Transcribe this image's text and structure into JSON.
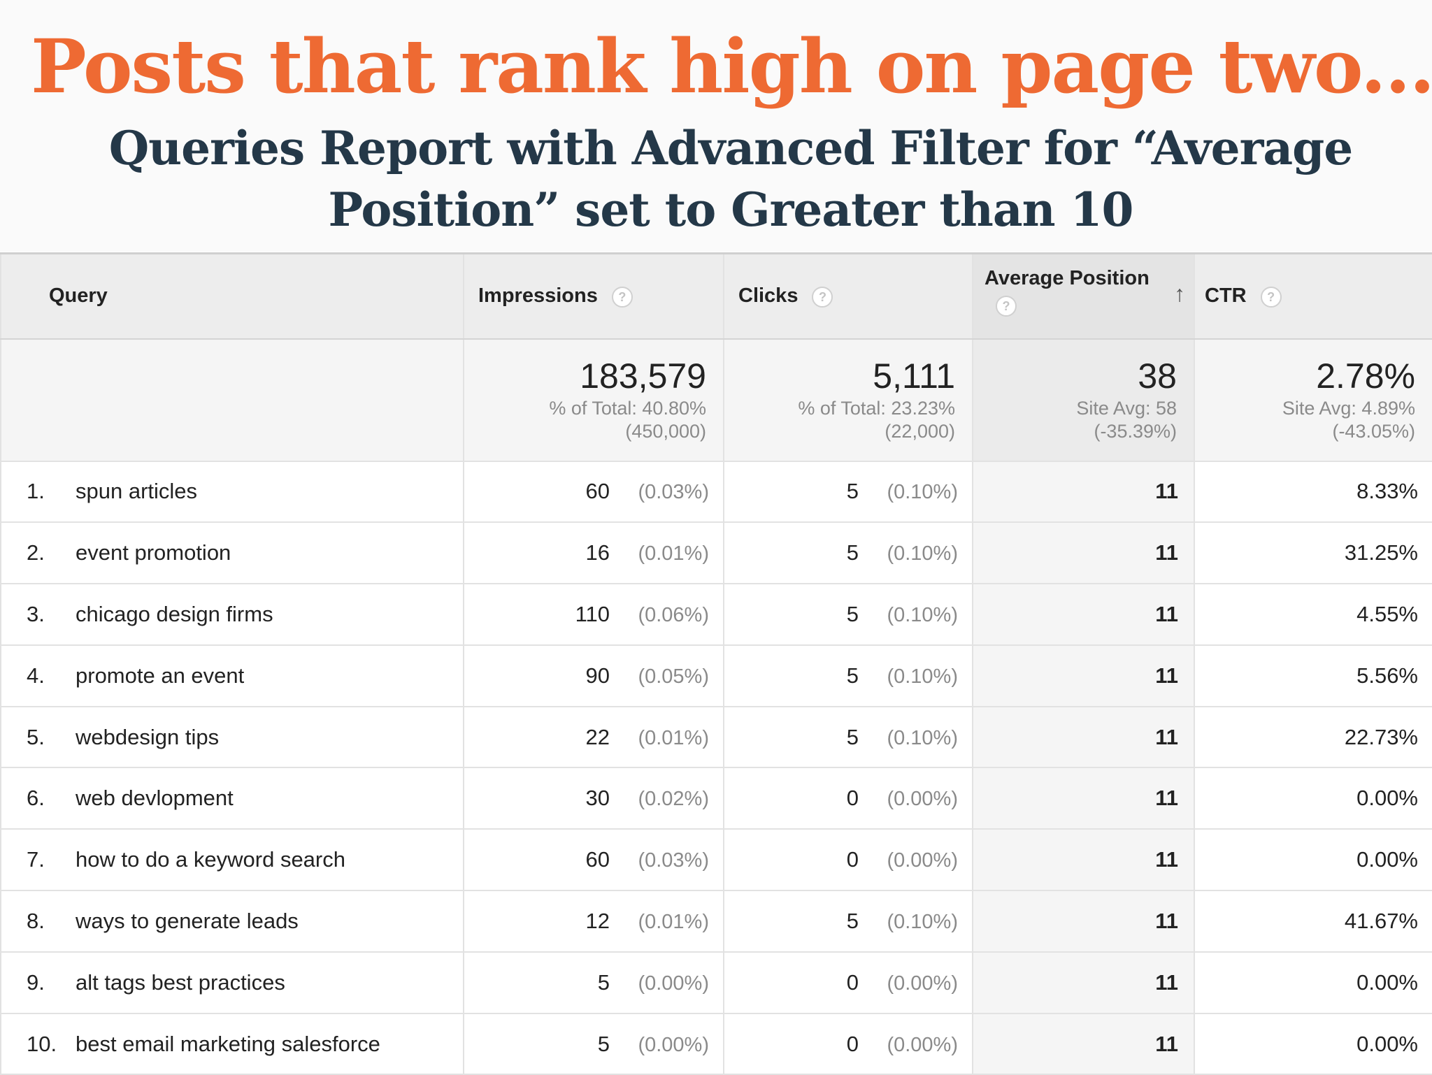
{
  "slide": {
    "title": "Posts that rank high on page two...",
    "subtitle": "Queries Report with Advanced Filter for “Average Position” set to Greater than 10"
  },
  "table": {
    "headers": {
      "query": "Query",
      "impressions": "Impressions",
      "clicks": "Clicks",
      "avg_position": "Average Position",
      "ctr": "CTR",
      "help_glyph": "?",
      "sort_glyph": "↑"
    },
    "summary": {
      "impressions": {
        "value": "183,579",
        "line1": "% of Total: 40.80%",
        "line2": "(450,000)"
      },
      "clicks": {
        "value": "5,111",
        "line1": "% of Total: 23.23%",
        "line2": "(22,000)"
      },
      "avg_position": {
        "value": "38",
        "line1": "Site Avg: 58",
        "line2": "(-35.39%)"
      },
      "ctr": {
        "value": "2.78%",
        "line1": "Site Avg: 4.89%",
        "line2": "(-43.05%)"
      }
    },
    "rows": [
      {
        "num": "1.",
        "query": "spun articles",
        "impressions": "60",
        "impressions_pct": "(0.03%)",
        "clicks": "5",
        "clicks_pct": "(0.10%)",
        "position": "11",
        "ctr": "8.33%"
      },
      {
        "num": "2.",
        "query": "event promotion",
        "impressions": "16",
        "impressions_pct": "(0.01%)",
        "clicks": "5",
        "clicks_pct": "(0.10%)",
        "position": "11",
        "ctr": "31.25%"
      },
      {
        "num": "3.",
        "query": "chicago design firms",
        "impressions": "110",
        "impressions_pct": "(0.06%)",
        "clicks": "5",
        "clicks_pct": "(0.10%)",
        "position": "11",
        "ctr": "4.55%"
      },
      {
        "num": "4.",
        "query": "promote an event",
        "impressions": "90",
        "impressions_pct": "(0.05%)",
        "clicks": "5",
        "clicks_pct": "(0.10%)",
        "position": "11",
        "ctr": "5.56%"
      },
      {
        "num": "5.",
        "query": "webdesign tips",
        "impressions": "22",
        "impressions_pct": "(0.01%)",
        "clicks": "5",
        "clicks_pct": "(0.10%)",
        "position": "11",
        "ctr": "22.73%"
      },
      {
        "num": "6.",
        "query": "web devlopment",
        "impressions": "30",
        "impressions_pct": "(0.02%)",
        "clicks": "0",
        "clicks_pct": "(0.00%)",
        "position": "11",
        "ctr": "0.00%"
      },
      {
        "num": "7.",
        "query": "how to do a keyword search",
        "impressions": "60",
        "impressions_pct": "(0.03%)",
        "clicks": "0",
        "clicks_pct": "(0.00%)",
        "position": "11",
        "ctr": "0.00%"
      },
      {
        "num": "8.",
        "query": "ways to generate leads",
        "impressions": "12",
        "impressions_pct": "(0.01%)",
        "clicks": "5",
        "clicks_pct": "(0.10%)",
        "position": "11",
        "ctr": "41.67%"
      },
      {
        "num": "9.",
        "query": "alt tags best practices",
        "impressions": "5",
        "impressions_pct": "(0.00%)",
        "clicks": "0",
        "clicks_pct": "(0.00%)",
        "position": "11",
        "ctr": "0.00%"
      },
      {
        "num": "10.",
        "query": "best email marketing salesforce",
        "impressions": "5",
        "impressions_pct": "(0.00%)",
        "clicks": "0",
        "clicks_pct": "(0.00%)",
        "position": "11",
        "ctr": "0.00%"
      }
    ]
  }
}
